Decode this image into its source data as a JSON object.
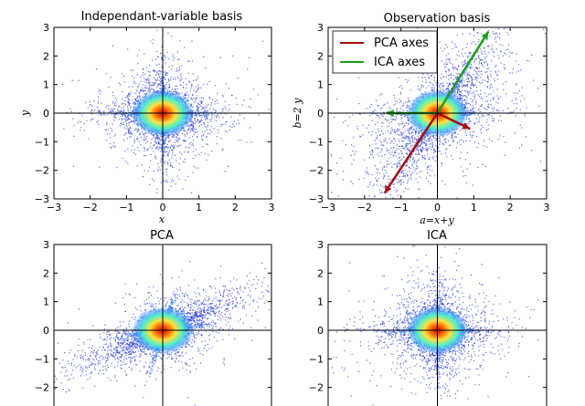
{
  "chart_data": [
    {
      "type": "scatter",
      "title": "Independant-variable basis",
      "xlabel": "x",
      "ylabel": "y",
      "xlim": [
        -3,
        3
      ],
      "ylim": [
        -3,
        3
      ],
      "xticks": [
        "−3",
        "−2",
        "−1",
        "0",
        "1",
        "2",
        "3"
      ],
      "yticks": [
        "3",
        "2",
        "1",
        "0",
        "−1",
        "−2",
        "−3"
      ],
      "density": "heavy-tailed cross along the x and y axes",
      "legend": []
    },
    {
      "type": "scatter",
      "title": "Observation basis",
      "xlabel": "a=x+y",
      "ylabel": "b=2 y",
      "xlim": [
        -3,
        3
      ],
      "ylim": [
        -3,
        3
      ],
      "xticks": [
        "−3",
        "−2",
        "−1",
        "0",
        "1",
        "2",
        "3"
      ],
      "yticks": [
        "3",
        "2",
        "1",
        "0",
        "−1",
        "−2",
        "−3"
      ],
      "density": "skewed cross along directions (1,0) and (1,2)",
      "legend": [
        {
          "label": "PCA axes",
          "color": "#a50e0e"
        },
        {
          "label": "ICA axes",
          "color": "#1e9a1e"
        }
      ],
      "legend_position": "top-left",
      "pca_axes": [
        {
          "from": [
            0,
            0
          ],
          "to": [
            -1.45,
            -2.8
          ]
        },
        {
          "from": [
            0,
            0
          ],
          "to": [
            0.9,
            -0.55
          ]
        }
      ],
      "ica_axes": [
        {
          "from": [
            0,
            0
          ],
          "to": [
            1.4,
            2.85
          ]
        },
        {
          "from": [
            0,
            0
          ],
          "to": [
            -1.4,
            0
          ]
        }
      ]
    },
    {
      "type": "scatter",
      "title": "PCA",
      "xlabel": "",
      "ylabel": "",
      "xlim": [
        -3,
        3
      ],
      "ylim": [
        -3,
        3
      ],
      "yticks": [
        "3",
        "2",
        "1",
        "0",
        "−1",
        "−2"
      ],
      "density": "rotated skewed cross",
      "legend": []
    },
    {
      "type": "scatter",
      "title": "ICA",
      "xlabel": "",
      "ylabel": "",
      "xlim": [
        -3,
        3
      ],
      "ylim": [
        -3,
        3
      ],
      "yticks": [
        "3",
        "2",
        "1",
        "0",
        "−1",
        "−2"
      ],
      "density": "heavy-tailed cross along the x and y axes",
      "legend": []
    }
  ],
  "colors": {
    "points": "#2a3bd6",
    "core_low": "#3b9cff",
    "core_mid": "#50f0c8",
    "core_high": "#ffe040",
    "core_peak": "#d40000",
    "pca": "#a50e0e",
    "ica": "#1e9a1e"
  }
}
